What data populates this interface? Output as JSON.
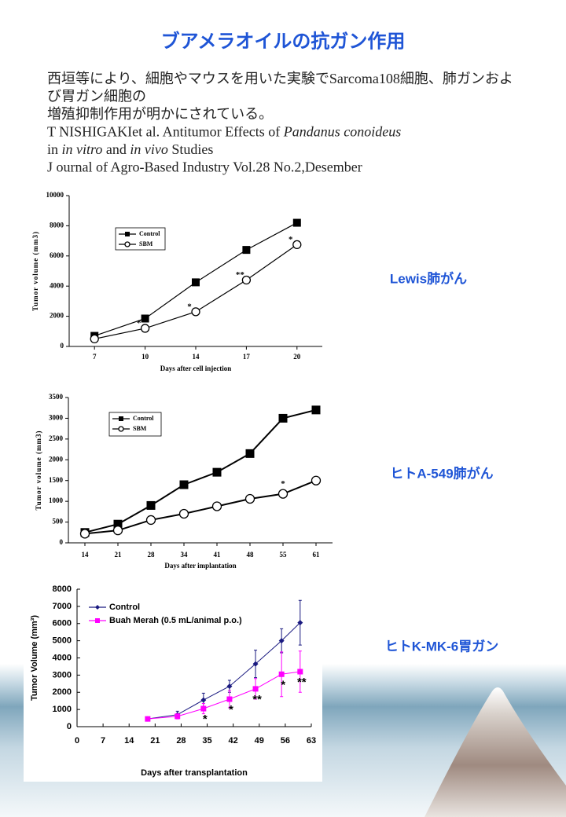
{
  "title": "ブアメラオイルの抗ガン作用",
  "text_lines": [
    [
      "西垣等により、細胞やマウスを用いた実験でSarcoma108細胞、肺ガンおよ"
    ],
    [
      "び胃ガン細胞の"
    ],
    [
      "増殖抑制作用が明かにされている。"
    ],
    [
      "T NISHIGAKIet al. Antitumor Effects of ",
      "Pandanus conoideus"
    ],
    [
      "in ",
      "in vitro",
      " and ",
      "in vivo",
      " Studies"
    ],
    [
      "J ournal of Agro-Based Industry Vol.28 No.2,Desember"
    ]
  ],
  "captions": [
    "Lewis肺がん",
    "ヒトA-549肺がん",
    "ヒトK-MK-6胃ガン"
  ],
  "chart_data": [
    {
      "type": "line",
      "x_label": "Days after cell injection",
      "y_label": "Tumor volume (mm3)",
      "categories": [
        "7",
        "10",
        "14",
        "17",
        "20"
      ],
      "ylim": [
        0,
        10000
      ],
      "yticks": [
        0,
        2000,
        4000,
        6000,
        8000,
        10000
      ],
      "series": [
        {
          "name": "Control",
          "color": "#000000",
          "marker": "square",
          "values": [
            700,
            1850,
            4250,
            6400,
            8200
          ]
        },
        {
          "name": "SBM",
          "color": "#000000",
          "marker": "open-circle",
          "values": [
            500,
            1200,
            2300,
            4400,
            6750
          ],
          "point_labels": [
            null,
            "*",
            "*",
            "**",
            "*"
          ]
        }
      ]
    },
    {
      "type": "line",
      "x_label": "Days after implantation",
      "y_label": "Tumor volume (mm3)",
      "categories": [
        "14",
        "21",
        "28",
        "34",
        "41",
        "48",
        "55",
        "61"
      ],
      "ylim": [
        0,
        3500
      ],
      "yticks": [
        0,
        500,
        1000,
        1500,
        2000,
        2500,
        3000,
        3500
      ],
      "series": [
        {
          "name": "Control",
          "color": "#000000",
          "marker": "square",
          "values": [
            250,
            450,
            900,
            1400,
            1700,
            2150,
            3000,
            3200
          ]
        },
        {
          "name": "SBM",
          "color": "#000000",
          "marker": "open-circle",
          "values": [
            220,
            300,
            550,
            700,
            880,
            1060,
            1180,
            1500
          ],
          "point_labels": [
            null,
            null,
            null,
            null,
            null,
            null,
            "*",
            null
          ]
        }
      ]
    },
    {
      "type": "line",
      "x_label": "Days after transplantation",
      "y_label": "Tumor Volume (mm³)",
      "x": [
        19,
        27,
        34,
        41,
        48,
        55,
        60
      ],
      "xlim": [
        0,
        63
      ],
      "xticks": [
        0,
        7,
        14,
        21,
        28,
        35,
        42,
        49,
        56,
        63
      ],
      "ylim": [
        0,
        8000
      ],
      "yticks": [
        0,
        1000,
        2000,
        3000,
        4000,
        5000,
        6000,
        7000,
        8000
      ],
      "series": [
        {
          "name": "Control",
          "color": "#1a1a80",
          "marker": "diamond",
          "values": [
            450,
            700,
            1550,
            2350,
            3650,
            5000,
            6050
          ],
          "errors": [
            50,
            200,
            400,
            350,
            800,
            700,
            1300
          ]
        },
        {
          "name": "Buah Merah (0.5 mL/animal p.o.)",
          "color": "#ff00ff",
          "marker": "square",
          "values": [
            450,
            600,
            1050,
            1600,
            2200,
            3050,
            3200
          ],
          "errors": [
            50,
            150,
            300,
            500,
            600,
            1300,
            1200
          ],
          "point_labels": [
            null,
            null,
            "*",
            "*",
            "**",
            "*",
            "**"
          ]
        }
      ]
    }
  ]
}
